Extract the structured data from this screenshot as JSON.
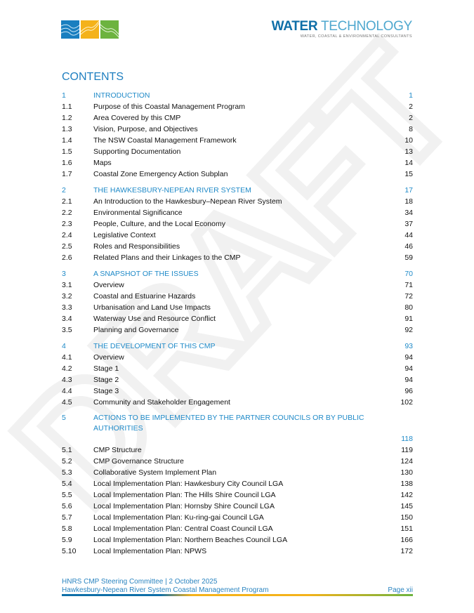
{
  "header": {
    "logo_brand_bold": "WATER",
    "logo_brand_light": " TECHNOLOGY",
    "logo_tagline": "WATER, COASTAL & ENVIRONMENTAL CONSULTANTS",
    "logo_colors": [
      "#1a7fc0",
      "#f4b21a",
      "#6db33f"
    ]
  },
  "watermark": "DRAFT",
  "contents_title": "CONTENTS",
  "sections": [
    {
      "num": "1",
      "title": "INTRODUCTION",
      "page": "1",
      "items": [
        {
          "num": "1.1",
          "title": "Purpose of this Coastal Management Program",
          "page": "2"
        },
        {
          "num": "1.2",
          "title": "Area Covered by this CMP",
          "page": "2"
        },
        {
          "num": "1.3",
          "title": "Vision, Purpose, and Objectives",
          "page": "8"
        },
        {
          "num": "1.4",
          "title": "The NSW Coastal Management Framework",
          "page": "10"
        },
        {
          "num": "1.5",
          "title": "Supporting Documentation",
          "page": "13"
        },
        {
          "num": "1.6",
          "title": "Maps",
          "page": "14"
        },
        {
          "num": "1.7",
          "title": "Coastal Zone Emergency Action Subplan",
          "page": "15"
        }
      ]
    },
    {
      "num": "2",
      "title": "THE HAWKESBURY-NEPEAN RIVER SYSTEM",
      "page": "17",
      "items": [
        {
          "num": "2.1",
          "title": "An Introduction to the Hawkesbury–Nepean River System",
          "page": "18"
        },
        {
          "num": "2.2",
          "title": "Environmental Significance",
          "page": "34"
        },
        {
          "num": "2.3",
          "title": "People, Culture, and the Local Economy",
          "page": "37"
        },
        {
          "num": "2.4",
          "title": "Legislative Context",
          "page": "44"
        },
        {
          "num": "2.5",
          "title": "Roles and Responsibilities",
          "page": "46"
        },
        {
          "num": "2.6",
          "title": "Related Plans and their Linkages to the CMP",
          "page": "59"
        }
      ]
    },
    {
      "num": "3",
      "title": "A SNAPSHOT OF THE ISSUES",
      "page": "70",
      "items": [
        {
          "num": "3.1",
          "title": "Overview",
          "page": "71"
        },
        {
          "num": "3.2",
          "title": "Coastal and Estuarine Hazards",
          "page": "72"
        },
        {
          "num": "3.3",
          "title": "Urbanisation and Land Use Impacts",
          "page": "80"
        },
        {
          "num": "3.4",
          "title": "Waterway Use and Resource Conflict",
          "page": "91"
        },
        {
          "num": "3.5",
          "title": "Planning and Governance",
          "page": "92"
        }
      ]
    },
    {
      "num": "4",
      "title": "THE DEVELOPMENT OF THIS CMP",
      "page": "93",
      "items": [
        {
          "num": "4.1",
          "title": "Overview",
          "page": "94"
        },
        {
          "num": "4.2",
          "title": "Stage 1",
          "page": "94"
        },
        {
          "num": "4.3",
          "title": "Stage 2",
          "page": "94"
        },
        {
          "num": "4.4",
          "title": "Stage 3",
          "page": "96"
        },
        {
          "num": "4.5",
          "title": "Community and Stakeholder Engagement",
          "page": "102"
        }
      ]
    },
    {
      "num": "5",
      "title": "ACTIONS TO BE IMPLEMENTED BY THE PARTNER COUNCILS OR BY PUBLIC AUTHORITIES",
      "page": "118",
      "wrap": true,
      "items": [
        {
          "num": "5.1",
          "title": "CMP Structure",
          "page": "119"
        },
        {
          "num": "5.2",
          "title": "CMP Governance Structure",
          "page": "124"
        },
        {
          "num": "5.3",
          "title": "Collaborative System Implement Plan",
          "page": "130"
        },
        {
          "num": "5.4",
          "title": "Local Implementation Plan: Hawkesbury City Council LGA",
          "page": "138"
        },
        {
          "num": "5.5",
          "title": "Local Implementation Plan: The Hills Shire Council LGA",
          "page": "142"
        },
        {
          "num": "5.6",
          "title": "Local Implementation Plan: Hornsby Shire Council LGA",
          "page": "145"
        },
        {
          "num": "5.7",
          "title": "Local Implementation Plan: Ku-ring-gai Council LGA",
          "page": "150"
        },
        {
          "num": "5.8",
          "title": "Local Implementation Plan: Central Coast Council LGA",
          "page": "151"
        },
        {
          "num": "5.9",
          "title": "Local Implementation Plan: Northern Beaches Council LGA",
          "page": "166"
        },
        {
          "num": "5.10",
          "title": "Local Implementation Plan: NPWS",
          "page": "172"
        }
      ]
    }
  ],
  "footer": {
    "line1": "HNRS CMP Steering Committee | 2 October 2025",
    "line2": "Hawkesbury-Nepean River System Coastal Management Program",
    "page_label": "Page xii"
  }
}
